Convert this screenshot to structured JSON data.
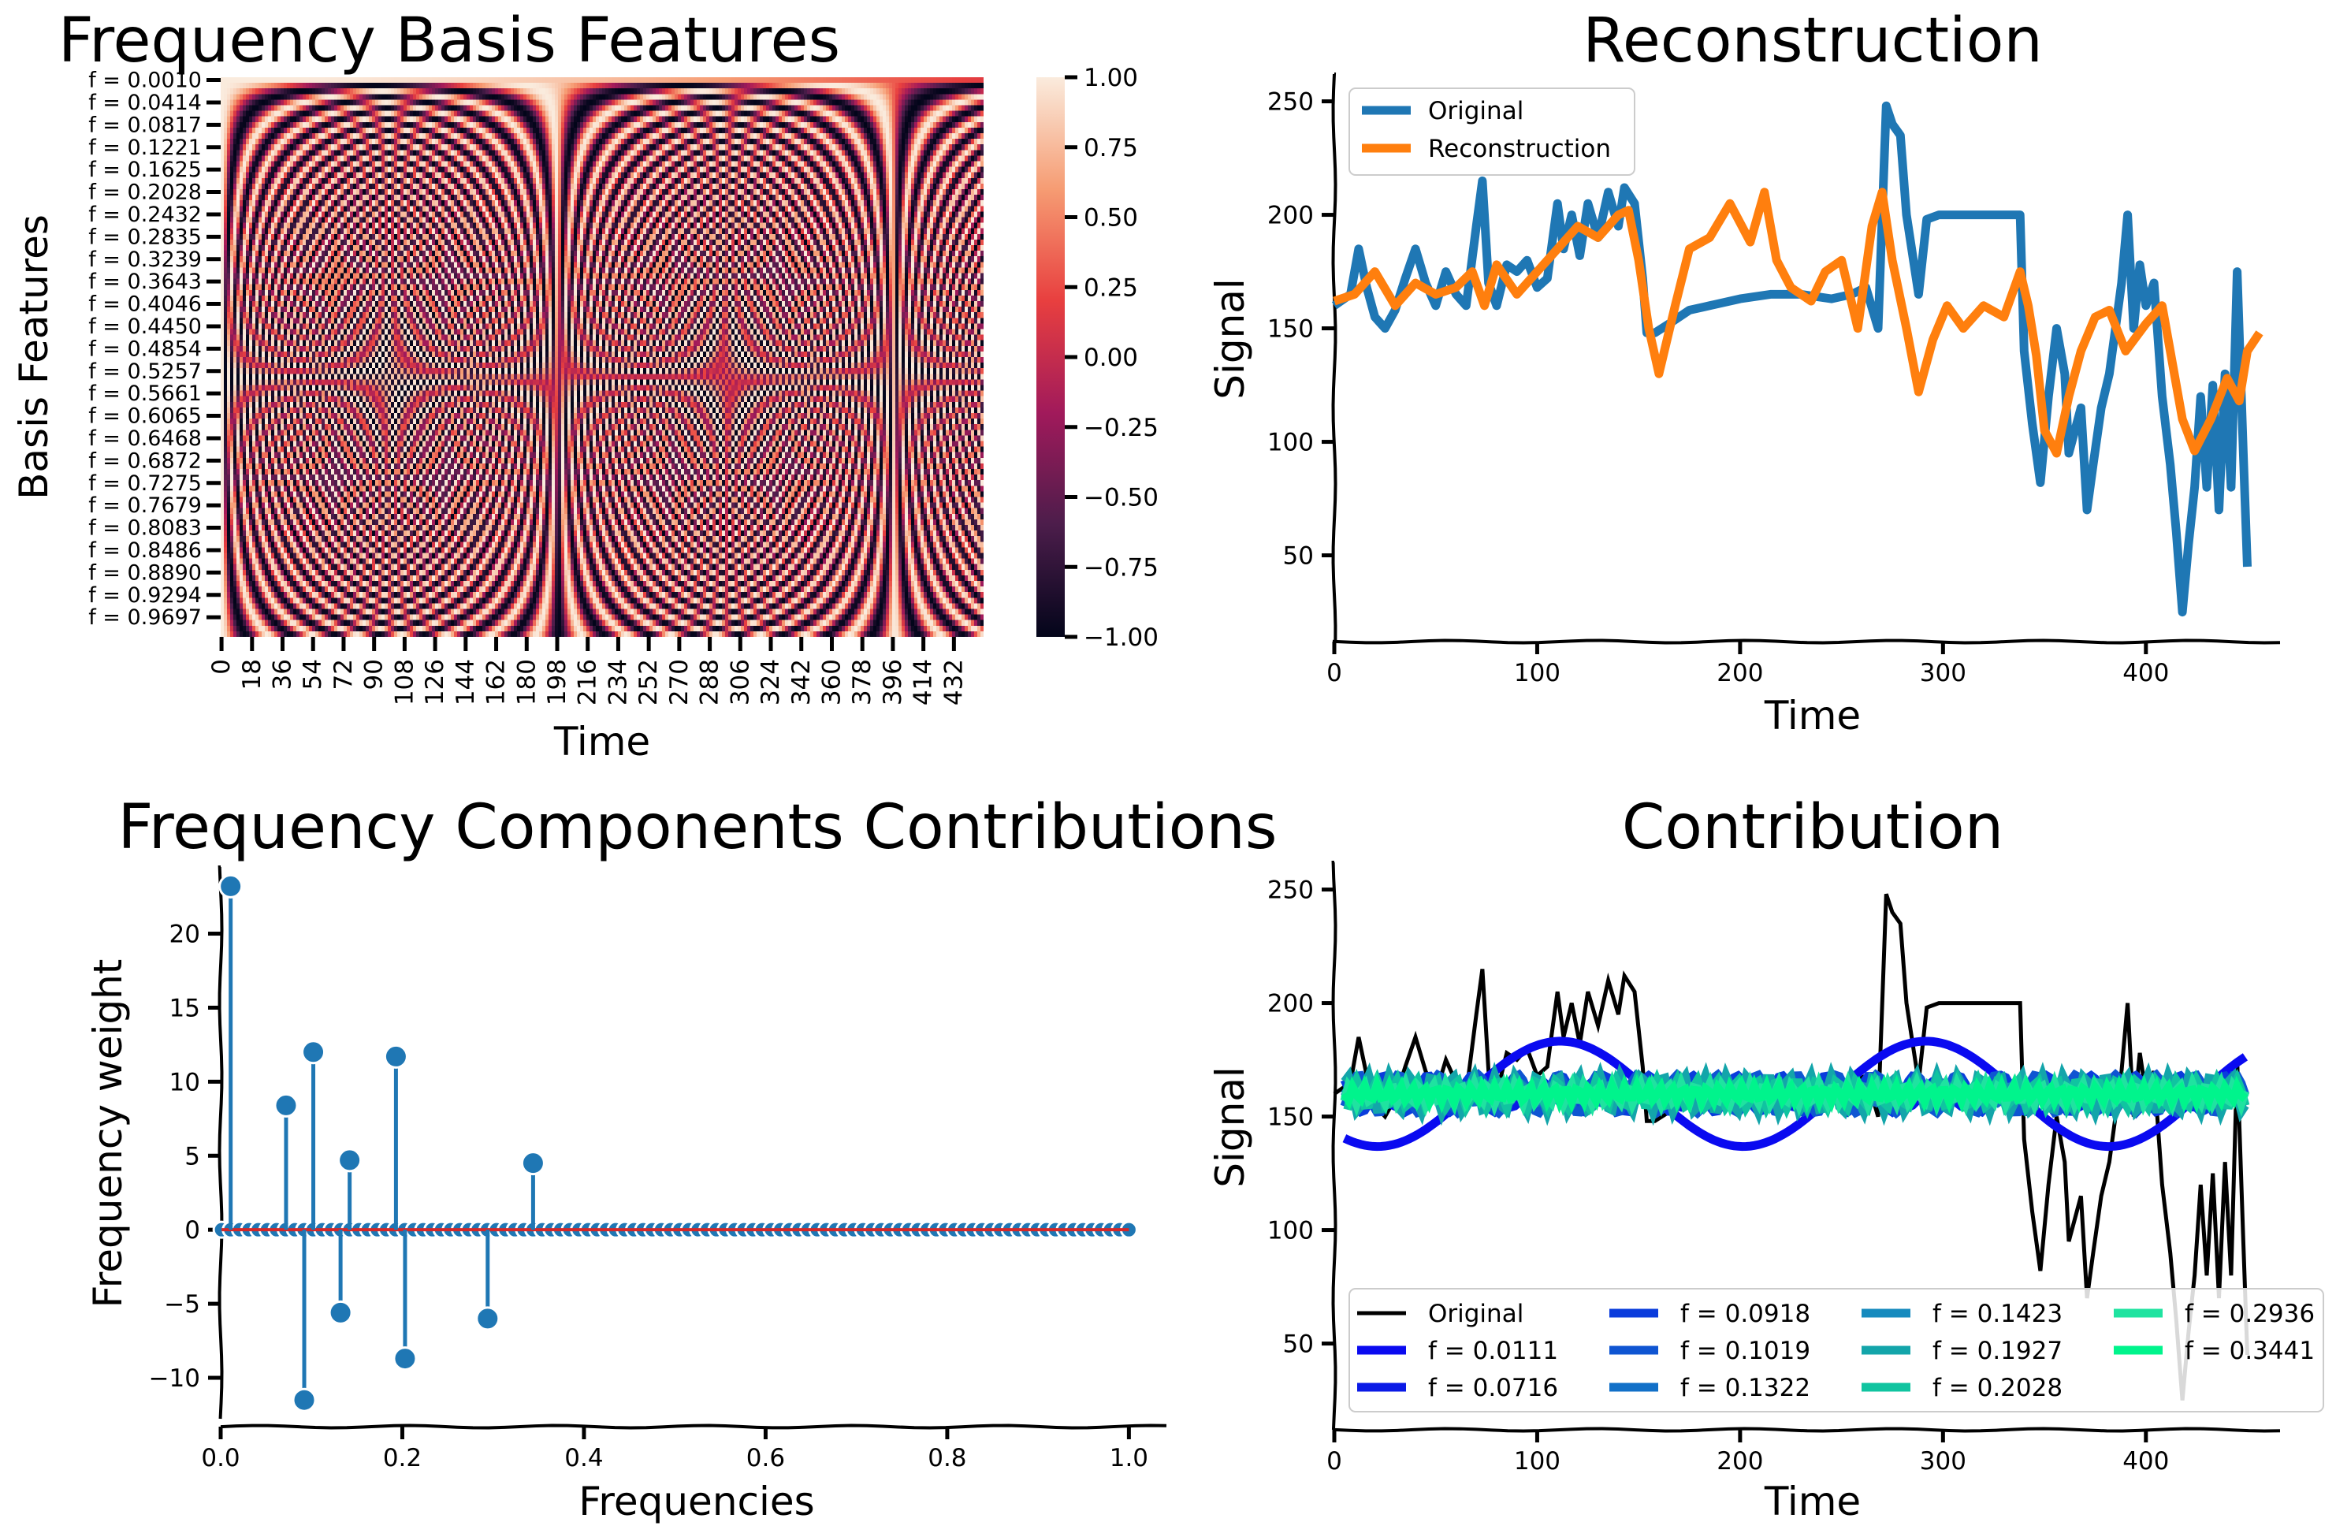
{
  "chart_data": [
    {
      "type": "heatmap",
      "title": "Frequency Basis Features",
      "xlabel": "Time",
      "ylabel": "Basis Features",
      "x_ticks": [
        "0",
        "18",
        "36",
        "54",
        "72",
        "90",
        "108",
        "126",
        "144",
        "162",
        "180",
        "198",
        "216",
        "234",
        "252",
        "270",
        "288",
        "306",
        "324",
        "342",
        "360",
        "378",
        "396",
        "414",
        "432"
      ],
      "y_ticks": [
        "f = 0.0010",
        "f = 0.0414",
        "f = 0.0817",
        "f = 0.1221",
        "f = 0.1625",
        "f = 0.2028",
        "f = 0.2432",
        "f = 0.2835",
        "f = 0.3239",
        "f = 0.3643",
        "f = 0.4046",
        "f = 0.4450",
        "f = 0.4854",
        "f = 0.5257",
        "f = 0.5661",
        "f = 0.6065",
        "f = 0.6468",
        "f = 0.6872",
        "f = 0.7275",
        "f = 0.7679",
        "f = 0.8083",
        "f = 0.8486",
        "f = 0.8890",
        "f = 0.9294",
        "f = 0.9697"
      ],
      "colorbar_ticks": [
        "1.00",
        "0.75",
        "0.50",
        "0.25",
        "0.00",
        "−0.25",
        "−0.50",
        "−0.75",
        "−1.00"
      ],
      "value_range": [
        -1,
        1
      ],
      "n_rows": 100,
      "n_time": 450,
      "colormap": [
        "#03051a",
        "#4c1d4b",
        "#a11a5b",
        "#e83f3f",
        "#f69c73",
        "#faebdd"
      ]
    },
    {
      "type": "line",
      "title": "Reconstruction",
      "xlabel": "Time",
      "ylabel": "Signal",
      "xlim": [
        0,
        470
      ],
      "ylim": [
        12,
        262
      ],
      "x_ticks": [
        "0",
        "100",
        "200",
        "300",
        "400"
      ],
      "y_ticks": [
        "50",
        "100",
        "150",
        "200",
        "250"
      ],
      "legend_position": "upper-left",
      "series": [
        {
          "name": "Original",
          "color": "#1f77b4",
          "points": [
            [
              0,
              160
            ],
            [
              8,
              165
            ],
            [
              12,
              185
            ],
            [
              16,
              168
            ],
            [
              20,
              155
            ],
            [
              25,
              150
            ],
            [
              30,
              158
            ],
            [
              35,
              172
            ],
            [
              40,
              185
            ],
            [
              45,
              170
            ],
            [
              50,
              160
            ],
            [
              55,
              175
            ],
            [
              60,
              165
            ],
            [
              65,
              160
            ],
            [
              70,
              195
            ],
            [
              73,
              215
            ],
            [
              76,
              170
            ],
            [
              80,
              160
            ],
            [
              85,
              178
            ],
            [
              90,
              175
            ],
            [
              95,
              180
            ],
            [
              100,
              168
            ],
            [
              105,
              172
            ],
            [
              110,
              205
            ],
            [
              113,
              185
            ],
            [
              117,
              200
            ],
            [
              121,
              182
            ],
            [
              125,
              205
            ],
            [
              130,
              190
            ],
            [
              135,
              210
            ],
            [
              140,
              195
            ],
            [
              143,
              212
            ],
            [
              148,
              205
            ],
            [
              152,
              172
            ],
            [
              154,
              148
            ],
            [
              158,
              148
            ],
            [
              165,
              152
            ],
            [
              175,
              158
            ],
            [
              185,
              160
            ],
            [
              200,
              163
            ],
            [
              215,
              165
            ],
            [
              230,
              165
            ],
            [
              245,
              163
            ],
            [
              255,
              165
            ],
            [
              262,
              168
            ],
            [
              268,
              150
            ],
            [
              272,
              248
            ],
            [
              275,
              240
            ],
            [
              279,
              235
            ],
            [
              282,
              200
            ],
            [
              288,
              165
            ],
            [
              292,
              198
            ],
            [
              298,
              200
            ],
            [
              310,
              200
            ],
            [
              320,
              200
            ],
            [
              332,
              200
            ],
            [
              338,
              200
            ],
            [
              340,
              140
            ],
            [
              344,
              108
            ],
            [
              348,
              82
            ],
            [
              352,
              120
            ],
            [
              356,
              150
            ],
            [
              360,
              130
            ],
            [
              362,
              95
            ],
            [
              365,
              105
            ],
            [
              368,
              115
            ],
            [
              371,
              70
            ],
            [
              374,
              90
            ],
            [
              378,
              115
            ],
            [
              382,
              130
            ],
            [
              385,
              150
            ],
            [
              388,
              170
            ],
            [
              391,
              200
            ],
            [
              394,
              150
            ],
            [
              397,
              178
            ],
            [
              400,
              160
            ],
            [
              404,
              170
            ],
            [
              408,
              120
            ],
            [
              412,
              90
            ],
            [
              415,
              60
            ],
            [
              418,
              25
            ],
            [
              421,
              55
            ],
            [
              424,
              80
            ],
            [
              427,
              120
            ],
            [
              430,
              80
            ],
            [
              433,
              125
            ],
            [
              436,
              70
            ],
            [
              439,
              130
            ],
            [
              442,
              80
            ],
            [
              445,
              175
            ],
            [
              448,
              95
            ],
            [
              450,
              45
            ]
          ]
        },
        {
          "name": "Reconstruction",
          "color": "#ff7f0e",
          "points": [
            [
              0,
              162
            ],
            [
              10,
              165
            ],
            [
              20,
              175
            ],
            [
              30,
              160
            ],
            [
              40,
              170
            ],
            [
              50,
              165
            ],
            [
              60,
              168
            ],
            [
              68,
              175
            ],
            [
              74,
              160
            ],
            [
              80,
              178
            ],
            [
              90,
              165
            ],
            [
              100,
              175
            ],
            [
              110,
              185
            ],
            [
              120,
              195
            ],
            [
              130,
              190
            ],
            [
              140,
              200
            ],
            [
              145,
              202
            ],
            [
              150,
              180
            ],
            [
              155,
              150
            ],
            [
              160,
              130
            ],
            [
              168,
              160
            ],
            [
              175,
              185
            ],
            [
              185,
              190
            ],
            [
              195,
              205
            ],
            [
              205,
              188
            ],
            [
              212,
              210
            ],
            [
              218,
              180
            ],
            [
              225,
              168
            ],
            [
              235,
              162
            ],
            [
              242,
              175
            ],
            [
              250,
              180
            ],
            [
              258,
              150
            ],
            [
              265,
              195
            ],
            [
              270,
              210
            ],
            [
              275,
              180
            ],
            [
              282,
              150
            ],
            [
              288,
              122
            ],
            [
              295,
              145
            ],
            [
              302,
              160
            ],
            [
              310,
              150
            ],
            [
              320,
              160
            ],
            [
              330,
              155
            ],
            [
              338,
              175
            ],
            [
              342,
              160
            ],
            [
              346,
              138
            ],
            [
              350,
              105
            ],
            [
              356,
              95
            ],
            [
              362,
              120
            ],
            [
              368,
              140
            ],
            [
              375,
              155
            ],
            [
              382,
              158
            ],
            [
              390,
              140
            ],
            [
              400,
              152
            ],
            [
              408,
              160
            ],
            [
              412,
              140
            ],
            [
              418,
              110
            ],
            [
              424,
              96
            ],
            [
              432,
              110
            ],
            [
              440,
              128
            ],
            [
              446,
              118
            ],
            [
              450,
              140
            ],
            [
              456,
              148
            ]
          ]
        }
      ]
    },
    {
      "type": "scatter",
      "title": "Frequency Components Contributions",
      "xlabel": "Frequencies",
      "ylabel": "Frequency weight",
      "xlim": [
        0,
        1.05
      ],
      "ylim": [
        -13.3,
        24.5
      ],
      "x_ticks": [
        "0.0",
        "0.2",
        "0.4",
        "0.6",
        "0.8",
        "1.0"
      ],
      "y_ticks": [
        "−10",
        "−5",
        "0",
        "5",
        "10",
        "15",
        "20"
      ],
      "stems": [
        {
          "x": 0.011,
          "y": 23.2
        },
        {
          "x": 0.072,
          "y": 8.4
        },
        {
          "x": 0.092,
          "y": -11.5
        },
        {
          "x": 0.102,
          "y": 12.0
        },
        {
          "x": 0.132,
          "y": -5.6
        },
        {
          "x": 0.142,
          "y": 4.7
        },
        {
          "x": 0.193,
          "y": 11.7
        },
        {
          "x": 0.203,
          "y": -8.7
        },
        {
          "x": 0.294,
          "y": -6.0
        },
        {
          "x": 0.344,
          "y": 4.5
        }
      ],
      "baseline": 0,
      "zero_markers_range": [
        0.001,
        1.0
      ],
      "zero_marker_count": 100
    },
    {
      "type": "line",
      "title": "Contribution",
      "xlabel": "Time",
      "ylabel": "Signal",
      "xlim": [
        0,
        470
      ],
      "ylim": [
        12,
        262
      ],
      "x_ticks": [
        "0",
        "100",
        "200",
        "300",
        "400"
      ],
      "y_ticks": [
        "50",
        "100",
        "150",
        "200",
        "250"
      ],
      "legend_position": "lower-center",
      "series": [
        {
          "name": "Original",
          "color": "#000000"
        },
        {
          "name": "f = 0.0111",
          "color": "#0a0af0",
          "freq": 0.0111,
          "amp": 23.2
        },
        {
          "name": "f = 0.0716",
          "color": "#0a1ae6",
          "freq": 0.0716,
          "amp": 8.4
        },
        {
          "name": "f = 0.0918",
          "color": "#0a3cdc",
          "freq": 0.0918,
          "amp": -11.5
        },
        {
          "name": "f = 0.1019",
          "color": "#0f55d2",
          "freq": 0.1019,
          "amp": 12.0
        },
        {
          "name": "f = 0.1322",
          "color": "#1270c8",
          "freq": 0.1322,
          "amp": -5.6
        },
        {
          "name": "f = 0.1423",
          "color": "#168abe",
          "freq": 0.1423,
          "amp": 4.7
        },
        {
          "name": "f = 0.1927",
          "color": "#13a5aa",
          "freq": 0.1927,
          "amp": 11.7
        },
        {
          "name": "f = 0.2028",
          "color": "#10c4a0",
          "freq": 0.2028,
          "amp": -8.7
        },
        {
          "name": "f = 0.2936",
          "color": "#1fe3a0",
          "freq": 0.2936,
          "amp": -6.0
        },
        {
          "name": "f = 0.3441",
          "color": "#00f48c",
          "freq": 0.3441,
          "amp": 4.5
        }
      ]
    }
  ]
}
